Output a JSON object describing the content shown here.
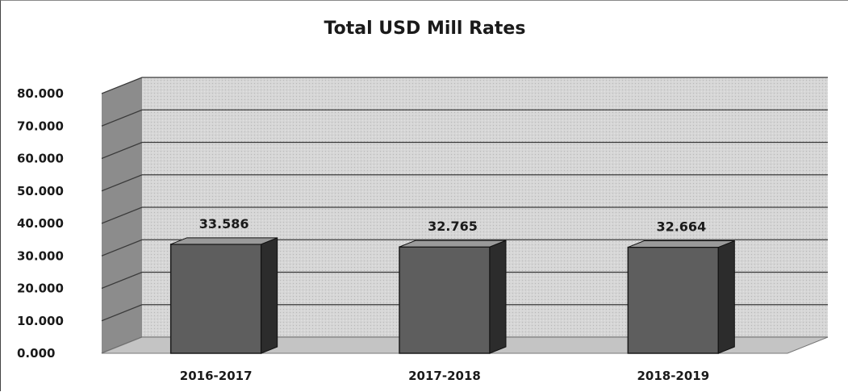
{
  "chart_data": {
    "type": "bar",
    "title": "Total USD Mill Rates",
    "categories": [
      "2016-2017",
      "2017-2018",
      "2018-2019"
    ],
    "values": [
      33.586,
      32.765,
      32.664
    ],
    "data_labels": [
      "33.586",
      "32.765",
      "32.664"
    ],
    "ylim": [
      0,
      80
    ],
    "yticks": [
      "0.000",
      "10.000",
      "20.000",
      "30.000",
      "40.000",
      "50.000",
      "60.000",
      "70.000",
      "80.000"
    ],
    "grid": true,
    "style": "3d-column",
    "colors": {
      "bar_front": "#5e5e5e",
      "bar_side": "#2c2c2c",
      "bar_top": "#9a9a9a",
      "back_wall": "#d6d6d6",
      "side_wall": "#8c8c8c",
      "floor": "#c4c4c4",
      "gridline": "#3a3a3a"
    }
  }
}
